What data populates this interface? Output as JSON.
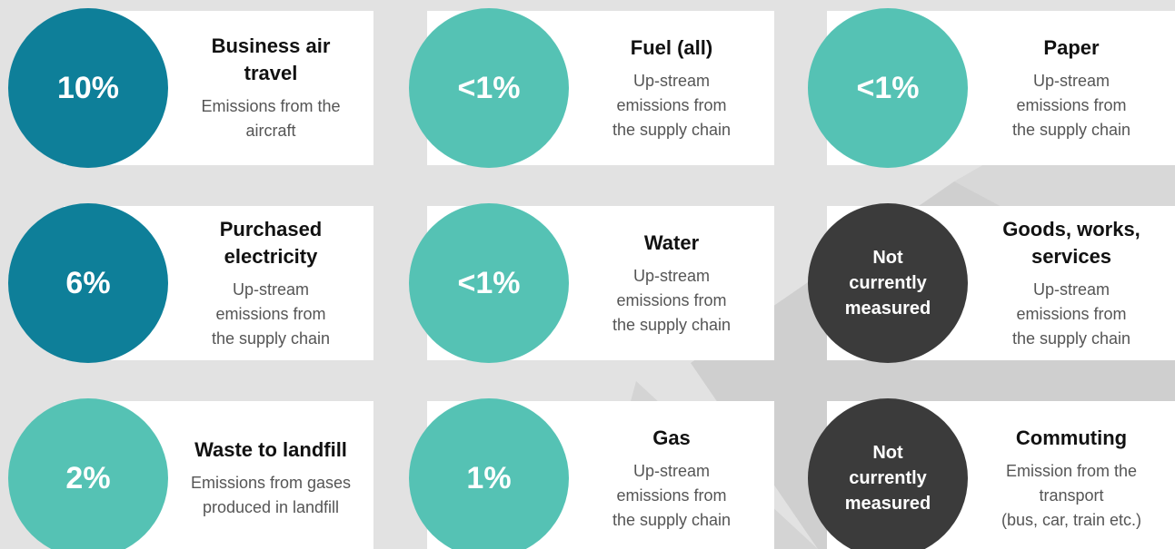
{
  "cards": [
    {
      "badge": [
        "10%"
      ],
      "color": "#0e7f99",
      "title": [
        "Business air",
        "travel"
      ],
      "description": [
        "Emissions from the",
        "aircraft"
      ]
    },
    {
      "badge": [
        "<1%"
      ],
      "color": "#55c2b4",
      "title": [
        "Fuel (all)"
      ],
      "description": [
        "Up-stream",
        "emissions from",
        "the supply chain"
      ]
    },
    {
      "badge": [
        "<1%"
      ],
      "color": "#55c2b4",
      "title": [
        "Paper"
      ],
      "description": [
        "Up-stream",
        "emissions from",
        "the supply chain"
      ]
    },
    {
      "badge": [
        "6%"
      ],
      "color": "#0e7f99",
      "title": [
        "Purchased",
        "electricity"
      ],
      "description": [
        "Up-stream",
        "emissions from",
        "the supply chain"
      ]
    },
    {
      "badge": [
        "<1%"
      ],
      "color": "#55c2b4",
      "title": [
        "Water"
      ],
      "description": [
        "Up-stream",
        "emissions from",
        "the supply chain"
      ]
    },
    {
      "badge": [
        "Not",
        "currently",
        "measured"
      ],
      "color": "#3b3b3b",
      "title": [
        "Goods, works,",
        "services"
      ],
      "description": [
        "Up-stream",
        "emissions from",
        "the supply chain"
      ]
    },
    {
      "badge": [
        "2%"
      ],
      "color": "#55c2b4",
      "title": [
        "Waste to landfill"
      ],
      "description": [
        "Emissions from gases",
        "produced in landfill"
      ]
    },
    {
      "badge": [
        "1%"
      ],
      "color": "#55c2b4",
      "title": [
        "Gas"
      ],
      "description": [
        "Up-stream",
        "emissions from",
        "the supply chain"
      ]
    },
    {
      "badge": [
        "Not",
        "currently",
        "measured"
      ],
      "color": "#3b3b3b",
      "title": [
        "Commuting"
      ],
      "description": [
        "Emission from the",
        "transport",
        "(bus, car, train etc.)"
      ]
    }
  ]
}
